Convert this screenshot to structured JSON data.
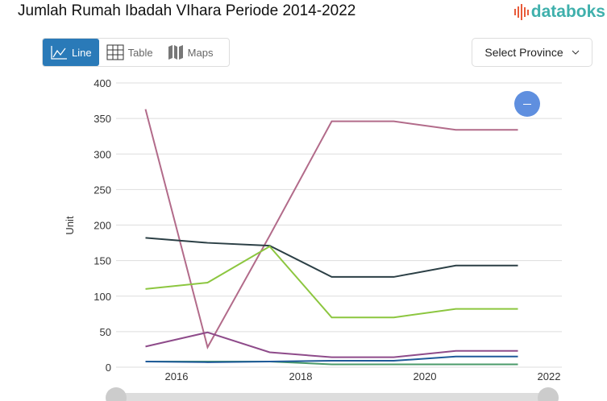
{
  "header": {
    "title": "Jumlah Rumah Ibadah VIhara Periode 2014-2022",
    "logo": "databoks"
  },
  "tabs": [
    {
      "label": "Line",
      "icon": "line-chart-icon"
    },
    {
      "label": "Table",
      "icon": "table-icon"
    },
    {
      "label": "Maps",
      "icon": "map-icon"
    }
  ],
  "select": {
    "label": "Select Province"
  },
  "colors": {
    "accent": "#2a7ab8",
    "fab": "#5f8fdf"
  },
  "chart_data": {
    "type": "line",
    "title": "",
    "xlabel": "",
    "ylabel": "Unit",
    "x": [
      2015,
      2016,
      2017,
      2018,
      2019,
      2020,
      2021
    ],
    "xticks": [
      "2016",
      "2018",
      "2020",
      "2022"
    ],
    "yticks": [
      "0",
      "50",
      "100",
      "150",
      "200",
      "250",
      "300",
      "350",
      "400"
    ],
    "ylim": [
      0,
      400
    ],
    "grid": true,
    "series": [
      {
        "color": "#b26b8a",
        "values": [
          363,
          28,
          185,
          346,
          346,
          334,
          334
        ]
      },
      {
        "color": "#2b3f45",
        "values": [
          182,
          175,
          171,
          127,
          127,
          143,
          143
        ]
      },
      {
        "color": "#8cc63f",
        "values": [
          110,
          119,
          170,
          70,
          70,
          82,
          82
        ]
      },
      {
        "color": "#8e4b8a",
        "values": [
          29,
          49,
          21,
          14,
          14,
          23,
          23
        ]
      },
      {
        "color": "#4a9a6a",
        "values": [
          8,
          8,
          8,
          4,
          4,
          4,
          4
        ]
      },
      {
        "color": "#1f5a9a",
        "values": [
          8,
          7,
          8,
          9,
          9,
          15,
          15
        ]
      }
    ]
  }
}
